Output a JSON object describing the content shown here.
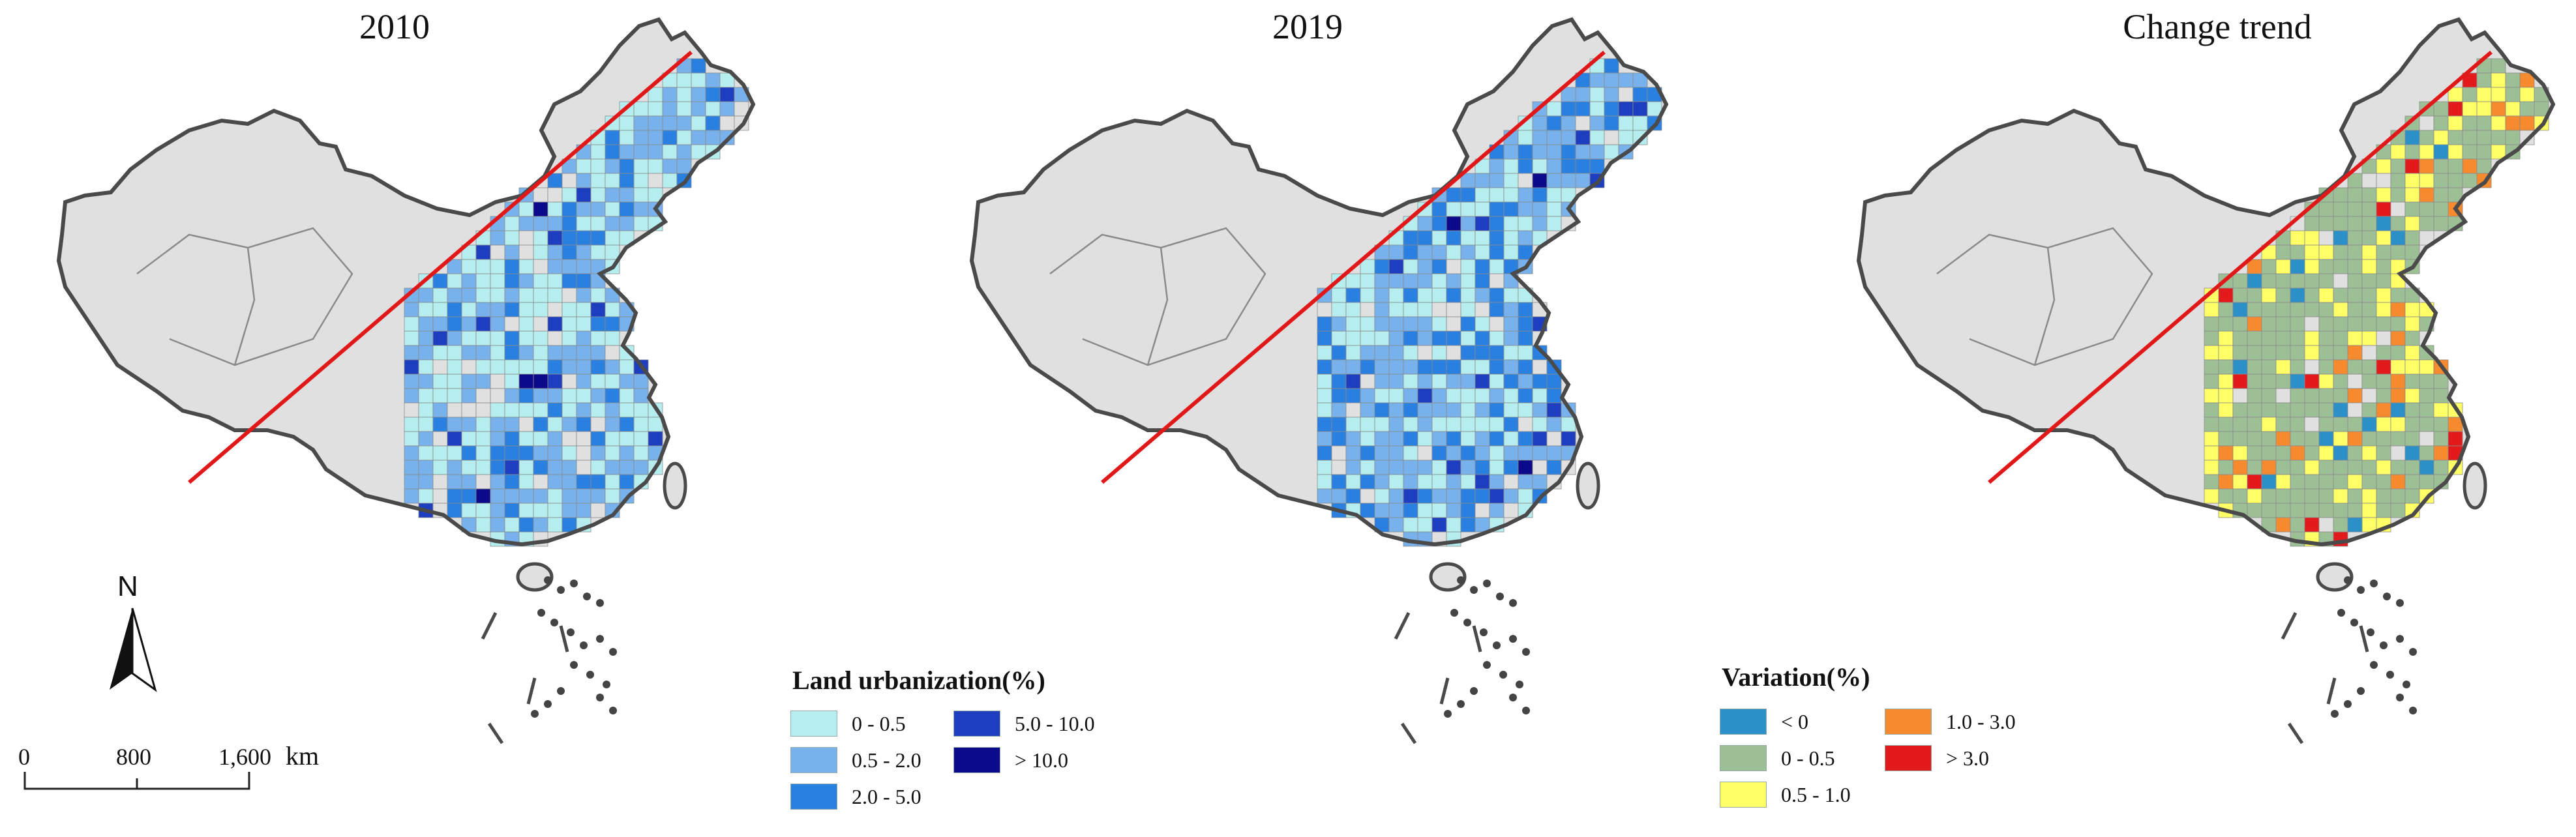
{
  "panels": [
    {
      "title": "2010",
      "mode": "urban",
      "seed": 11
    },
    {
      "title": "2019",
      "mode": "urban",
      "seed": 23
    },
    {
      "title": "Change trend",
      "mode": "change",
      "seed": 37
    }
  ],
  "legend_urban": {
    "title": "Land urbanization(%)",
    "items": [
      {
        "label": "0 - 0.5",
        "color": "#b6eef0"
      },
      {
        "label": "0.5 - 2.0",
        "color": "#78b2ec"
      },
      {
        "label": "2.0 - 5.0",
        "color": "#2a80e0"
      },
      {
        "label": "5.0 - 10.0",
        "color": "#1d3fbf"
      },
      {
        "label": "> 10.0",
        "color": "#0a0a8a"
      }
    ]
  },
  "legend_change": {
    "title": "Variation(%)",
    "items": [
      {
        "label": "< 0",
        "color": "#2b8fc8"
      },
      {
        "label": "0 - 0.5",
        "color": "#9dbf95"
      },
      {
        "label": "0.5 - 1.0",
        "color": "#ffff66"
      },
      {
        "label": "1.0 - 3.0",
        "color": "#f58a2e"
      },
      {
        "label": "> 3.0",
        "color": "#e31a1c"
      }
    ]
  },
  "north_arrow": {
    "label": "N"
  },
  "scale_bar": {
    "ticks": [
      "0",
      "800",
      "1,600"
    ],
    "unit": "km"
  },
  "colors": {
    "base_land": "#e0e0e0",
    "border": "#4a4a4a",
    "hu_line": "#e0181a",
    "inner_border": "#8a8a8a"
  }
}
